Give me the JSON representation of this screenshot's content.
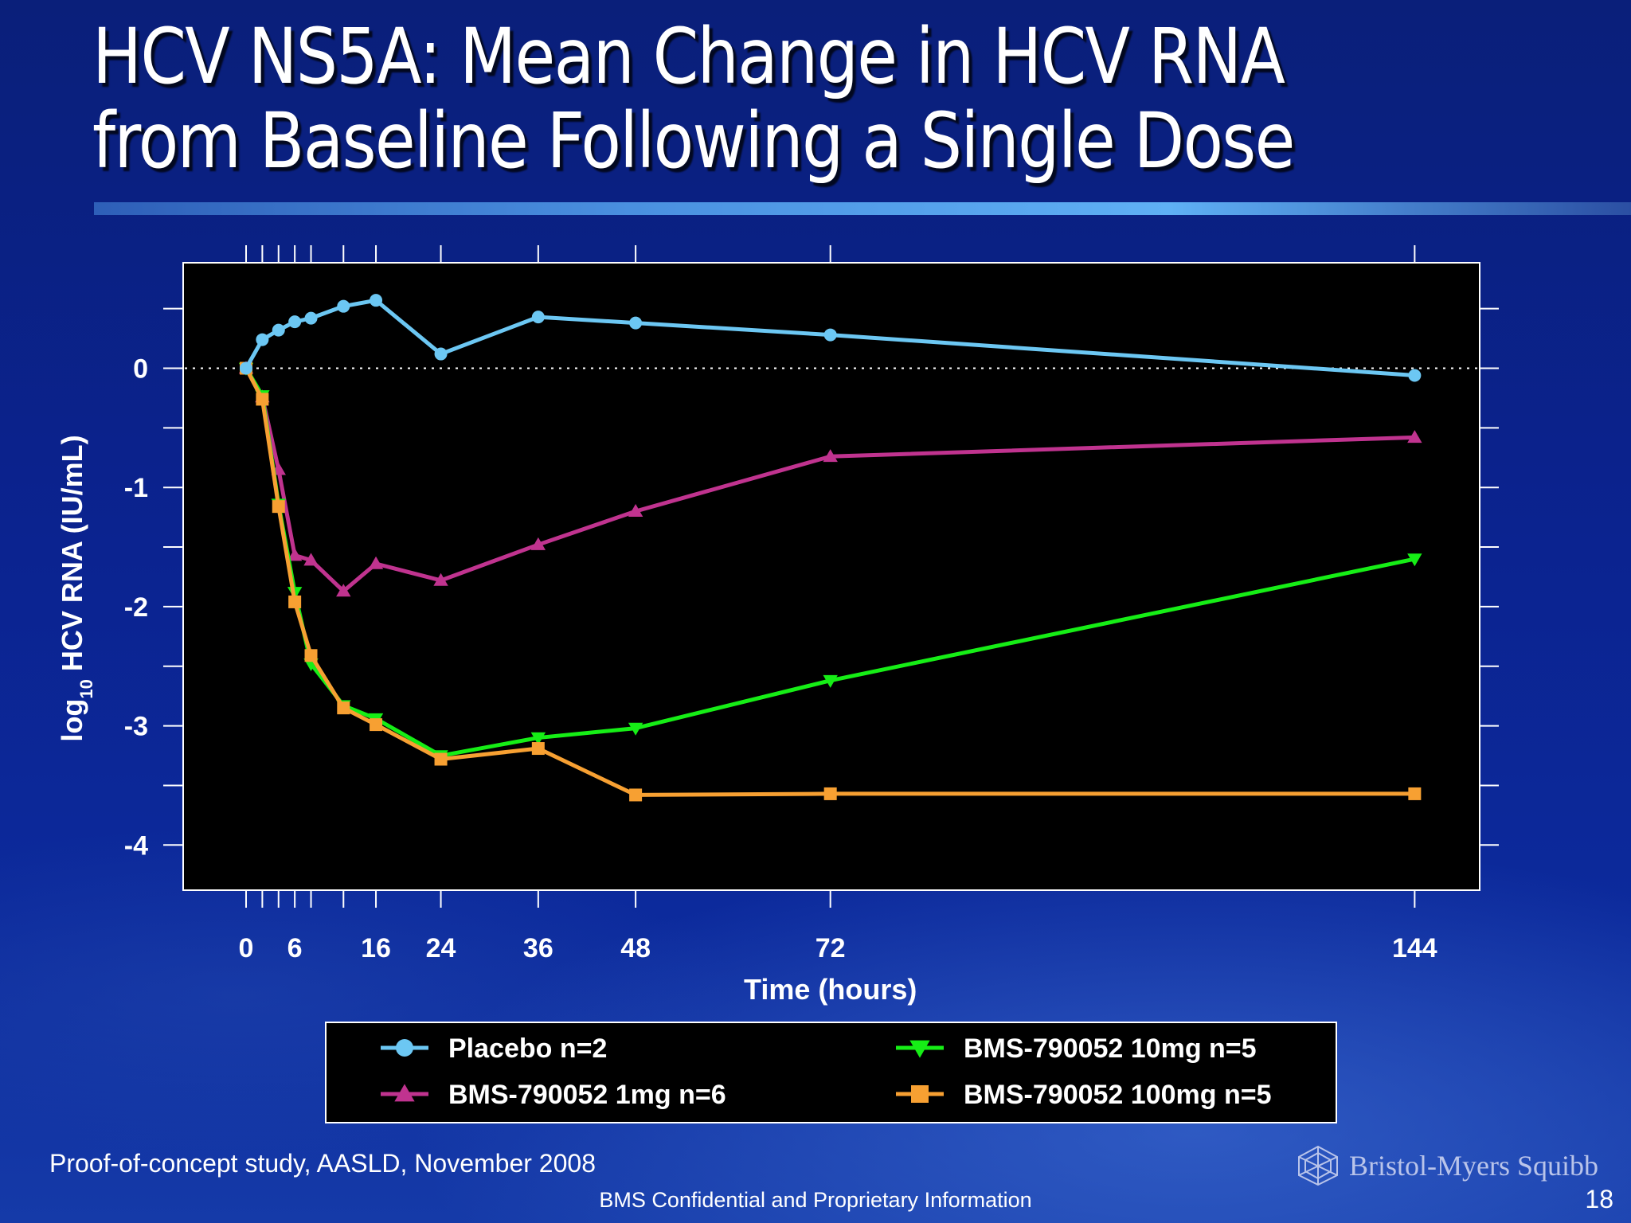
{
  "slide": {
    "title_line1": "HCV NS5A: Mean Change in HCV RNA",
    "title_line2": "from Baseline Following a Single Dose",
    "footnote": "Proof-of-concept study, AASLD, November 2008",
    "confidential": "BMS Confidential and Proprietary Information",
    "page_number": "18",
    "logo_text": "Bristol-Myers Squibb"
  },
  "colors": {
    "background": "#0b2390",
    "plot_background": "#000000",
    "placebo": "#6cc7f3",
    "dose_1mg": "#c0338f",
    "dose_10mg": "#16ee16",
    "dose_100mg": "#f7a032"
  },
  "chart_data": {
    "type": "line",
    "title": "",
    "xlabel": "Time (hours)",
    "ylabel_main": "log",
    "ylabel_sub": "10",
    "ylabel_rest": " HCV RNA (IU/mL)",
    "xlim": [
      -3.5,
      150
    ],
    "ylim": [
      -4.36,
      0.9
    ],
    "x_tick_labels": [
      "0",
      "6",
      "16",
      "24",
      "36",
      "48",
      "72",
      "144"
    ],
    "x_tick_values": [
      0,
      6,
      16,
      24,
      36,
      48,
      72,
      144
    ],
    "x_minor_ticks": [
      0,
      2,
      4,
      6,
      8,
      12,
      16,
      24,
      36,
      48,
      72,
      144
    ],
    "y_tick_labels": [
      "0",
      "-1",
      "-2",
      "-3",
      "-4"
    ],
    "y_tick_values": [
      0,
      -1,
      -2,
      -3,
      -4
    ],
    "y_minor_ticks": [
      0.5,
      0,
      -0.5,
      -1,
      -1.5,
      -2,
      -2.5,
      -3,
      -3.5,
      -4
    ],
    "reference_line": 0,
    "grid": false,
    "legend_position": "bottom",
    "series": [
      {
        "name": "Placebo n=2",
        "color": "#6cc7f3",
        "marker": "circle",
        "x": [
          0,
          2,
          4,
          6,
          8,
          12,
          16,
          24,
          36,
          48,
          72,
          144
        ],
        "y": [
          0.0,
          0.24,
          0.32,
          0.39,
          0.42,
          0.52,
          0.57,
          0.12,
          0.43,
          0.38,
          0.28,
          -0.06
        ]
      },
      {
        "name": "BMS-790052 1mg  n=6",
        "color": "#c0338f",
        "marker": "triangle-up",
        "x": [
          0,
          2,
          4,
          6,
          8,
          12,
          16,
          24,
          36,
          48,
          72,
          144
        ],
        "y": [
          0.0,
          -0.24,
          -0.85,
          -1.57,
          -1.61,
          -1.87,
          -1.64,
          -1.78,
          -1.48,
          -1.2,
          -0.74,
          -0.58
        ]
      },
      {
        "name": "BMS-790052 10mg  n=5",
        "color": "#16ee16",
        "marker": "triangle-down",
        "x": [
          0,
          2,
          4,
          6,
          8,
          12,
          16,
          24,
          36,
          48,
          72,
          144
        ],
        "y": [
          0.0,
          -0.23,
          -1.14,
          -1.88,
          -2.48,
          -2.83,
          -2.94,
          -3.25,
          -3.1,
          -3.02,
          -2.62,
          -1.6
        ]
      },
      {
        "name": "BMS-790052 100mg n=5",
        "color": "#f7a032",
        "marker": "square",
        "x": [
          0,
          2,
          4,
          6,
          8,
          12,
          16,
          24,
          36,
          48,
          72,
          144
        ],
        "y": [
          0.0,
          -0.26,
          -1.16,
          -1.96,
          -2.41,
          -2.85,
          -2.99,
          -3.28,
          -3.19,
          -3.58,
          -3.57,
          -3.57
        ]
      }
    ]
  }
}
